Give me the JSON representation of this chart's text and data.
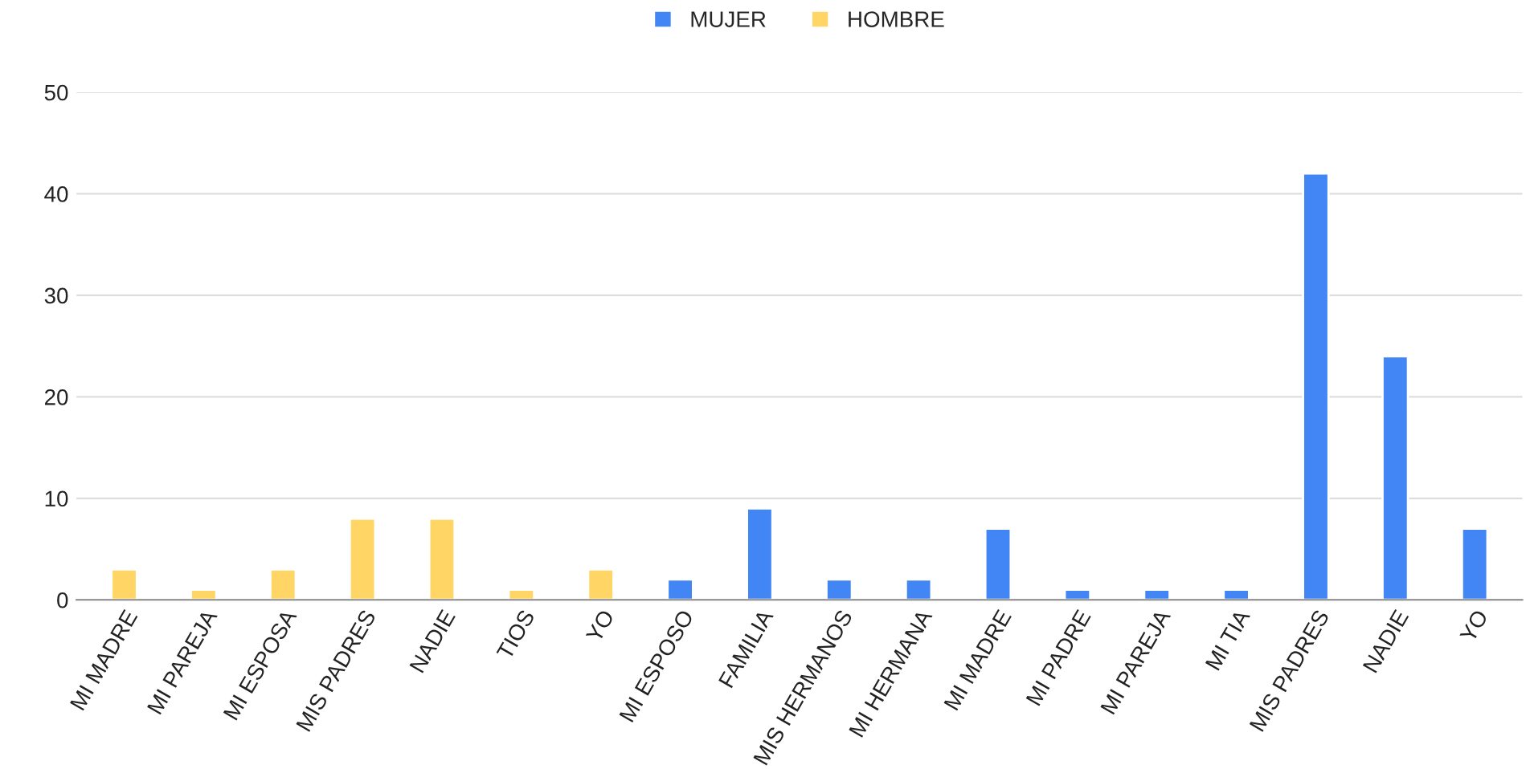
{
  "chart_data": {
    "type": "bar",
    "categories": [
      "MI MADRE",
      "MI PAREJA",
      "MI ESPOSA",
      "MIS PADRES",
      "NADIE",
      "TIOS",
      "YO",
      "MI ESPOSO",
      "FAMILIA",
      "MIS HERMANOS",
      "MI HERMANA",
      "MI MADRE",
      "MI PADRE",
      "MI PAREJA",
      "MI TIA",
      "MIS PADRES",
      "NADIE",
      "YO"
    ],
    "series": [
      {
        "name": "MUJER",
        "color": "#4285f4",
        "values": [
          null,
          null,
          null,
          null,
          null,
          null,
          null,
          2,
          9,
          2,
          2,
          7,
          1,
          1,
          1,
          42,
          24,
          7
        ]
      },
      {
        "name": "HOMBRE",
        "color": "#ffd666",
        "values": [
          3,
          1,
          3,
          8,
          8,
          1,
          3,
          null,
          null,
          null,
          null,
          null,
          null,
          null,
          null,
          null,
          null,
          null
        ]
      }
    ],
    "ylim": [
      0,
      50
    ],
    "yticks": [
      0,
      10,
      20,
      30,
      40,
      50
    ],
    "grid": "y",
    "legend": "top"
  }
}
